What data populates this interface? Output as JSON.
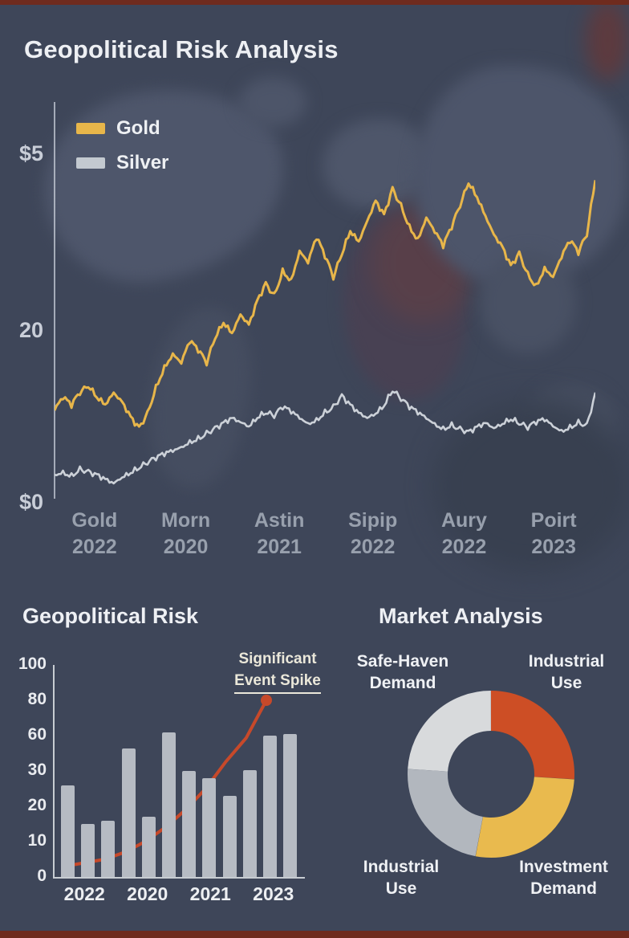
{
  "page": {
    "bg": "#3e4659",
    "accent_red": "#6f2b1e"
  },
  "header": {
    "title": "Geopolitical Risk Analysis"
  },
  "main_chart": {
    "legend": [
      {
        "label": "Gold",
        "color": "#e8b64a"
      },
      {
        "label": "Silver",
        "color": "#c3c9d0"
      }
    ],
    "y_ticks": [
      "$5",
      "20",
      "$0"
    ]
  },
  "risk_section": {
    "title": "Geopolitical Risk",
    "annotation_line1": "Significant",
    "annotation_line2": "Event Spike"
  },
  "market_section": {
    "title": "Market Analysis",
    "labels": {
      "top_left_1": "Safe-Haven",
      "top_left_2": "Demand",
      "top_right_1": "Industrial",
      "top_right_2": "Use",
      "bottom_left_1": "Industrial",
      "bottom_left_2": "Use",
      "bottom_right_1": "Investment",
      "bottom_right_2": "Demand"
    }
  },
  "chart_data": [
    {
      "type": "line",
      "title": "Geopolitical Risk Analysis — Gold vs Silver price trend",
      "x_labels": [
        "Gold 2022",
        "Morn 2020",
        "Astin 2021",
        "Sipip 2022",
        "Aury 2022",
        "Poirt 2023"
      ],
      "y_tick_labels": [
        "$0",
        "20",
        "$5"
      ],
      "y_tick_values": [
        0,
        20,
        41
      ],
      "ylim": [
        0,
        47
      ],
      "legend_position": "top-left",
      "grid": false,
      "series": [
        {
          "name": "Gold",
          "color": "#e8b64a",
          "values": [
            10.5,
            11.8,
            10.8,
            12.3,
            13.2,
            12.0,
            11.2,
            12.6,
            11.5,
            9.8,
            8.6,
            10.4,
            13.5,
            15.8,
            17.2,
            16.0,
            18.4,
            17.3,
            15.8,
            18.9,
            20.8,
            19.6,
            21.8,
            20.6,
            23.5,
            25.6,
            24.3,
            27.2,
            26.0,
            29.3,
            27.8,
            30.6,
            28.4,
            25.9,
            28.8,
            31.6,
            30.4,
            32.8,
            35.2,
            33.6,
            36.8,
            34.9,
            32.4,
            30.8,
            33.2,
            31.4,
            29.6,
            31.8,
            34.4,
            37.2,
            35.6,
            33.4,
            31.2,
            29.8,
            27.6,
            29.2,
            26.8,
            25.4,
            27.4,
            26.2,
            28.4,
            30.2,
            28.8,
            31.0,
            37.6
          ]
        },
        {
          "name": "Silver",
          "color": "#ccd1d8",
          "values": [
            2.9,
            3.4,
            3.1,
            3.9,
            3.5,
            3.0,
            2.4,
            1.9,
            2.6,
            3.1,
            3.6,
            4.1,
            4.6,
            5.1,
            5.6,
            6.2,
            7.0,
            7.5,
            8.1,
            8.6,
            9.1,
            9.6,
            9.1,
            8.6,
            9.6,
            10.1,
            9.6,
            10.6,
            10.1,
            9.5,
            9.0,
            9.6,
            10.6,
            11.2,
            12.4,
            11.2,
            10.2,
            9.6,
            10.1,
            11.0,
            12.7,
            11.6,
            10.6,
            10.0,
            9.5,
            9.0,
            8.6,
            9.1,
            8.6,
            8.1,
            8.6,
            9.0,
            8.4,
            8.9,
            9.4,
            8.8,
            8.2,
            8.8,
            9.2,
            8.6,
            8.2,
            8.8,
            9.4,
            9.0,
            12.6
          ]
        }
      ]
    },
    {
      "type": "bar",
      "title": "Geopolitical Risk",
      "y_tick_labels": [
        100,
        80,
        60,
        30,
        20,
        10,
        0
      ],
      "x_labels": [
        "2022",
        "2020",
        "2021",
        "2023"
      ],
      "bar_values": [
        26,
        15,
        16,
        49,
        17,
        62,
        30,
        28,
        23,
        31,
        60,
        61
      ],
      "bar_color": "#b6bbc3",
      "line_series": {
        "name": "Risk trend",
        "color": "#c7492a",
        "values": [
          3,
          4,
          5,
          7,
          10,
          14,
          19,
          25,
          38,
          58,
          80
        ],
        "end_dot": true
      },
      "annotation": "Significant Event Spike",
      "grid": false
    },
    {
      "type": "pie",
      "title": "Market Analysis",
      "donut": true,
      "slices": [
        {
          "label": "Industrial Use",
          "value": 26,
          "color": "#cd4e25"
        },
        {
          "label": "Investment Demand",
          "value": 27,
          "color": "#e9ba4e"
        },
        {
          "label": "Industrial Use",
          "value": 23,
          "color": "#b2b7be"
        },
        {
          "label": "Safe-Haven Demand",
          "value": 24,
          "color": "#d8dadc"
        }
      ]
    }
  ]
}
